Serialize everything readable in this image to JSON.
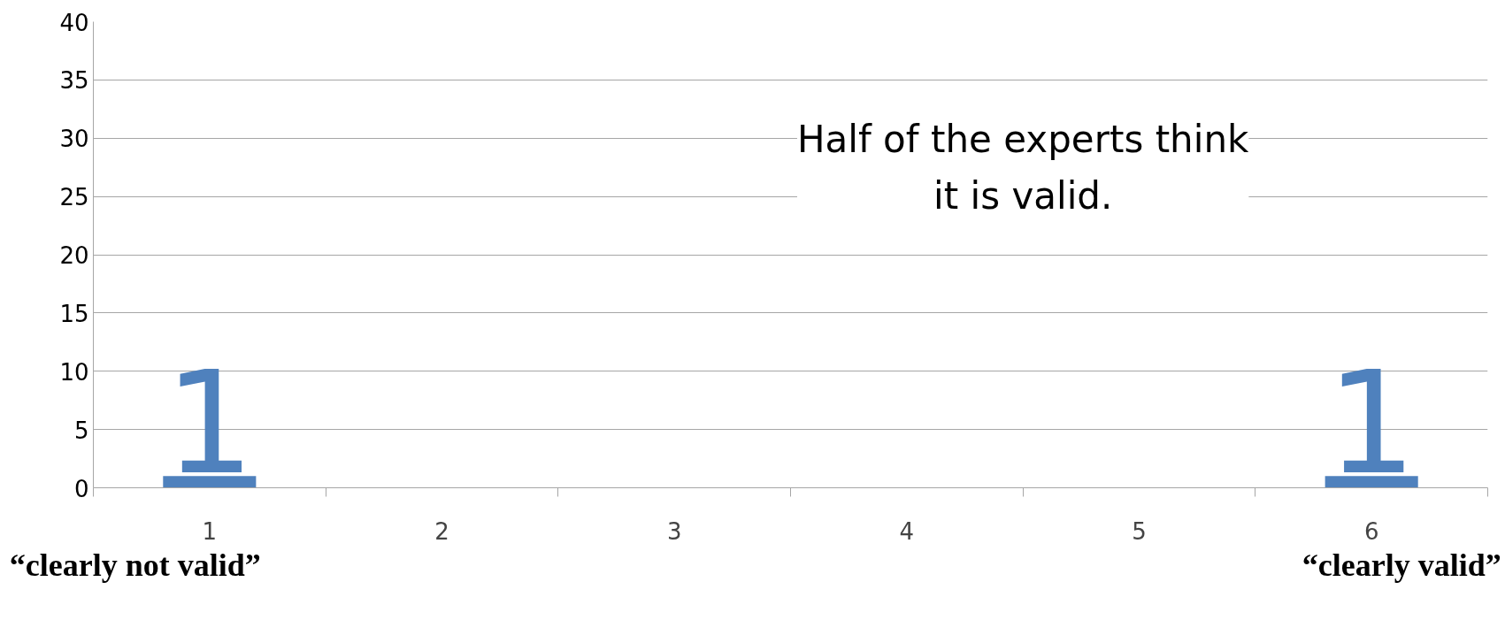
{
  "chart_data": {
    "type": "bar",
    "categories": [
      "1",
      "2",
      "3",
      "4",
      "5",
      "6"
    ],
    "values": [
      1,
      0,
      0,
      0,
      0,
      1
    ],
    "color": "#4f81bd",
    "value_labels": [
      "1",
      null,
      null,
      null,
      null,
      "1"
    ],
    "ylim": [
      0,
      40
    ],
    "yticks": [
      0,
      5,
      10,
      15,
      20,
      25,
      30,
      35,
      40
    ],
    "grid": "y",
    "annotations": [
      "Half of the experts think\nit is valid.",
      "“clearly not valid”",
      "“clearly valid”"
    ]
  }
}
